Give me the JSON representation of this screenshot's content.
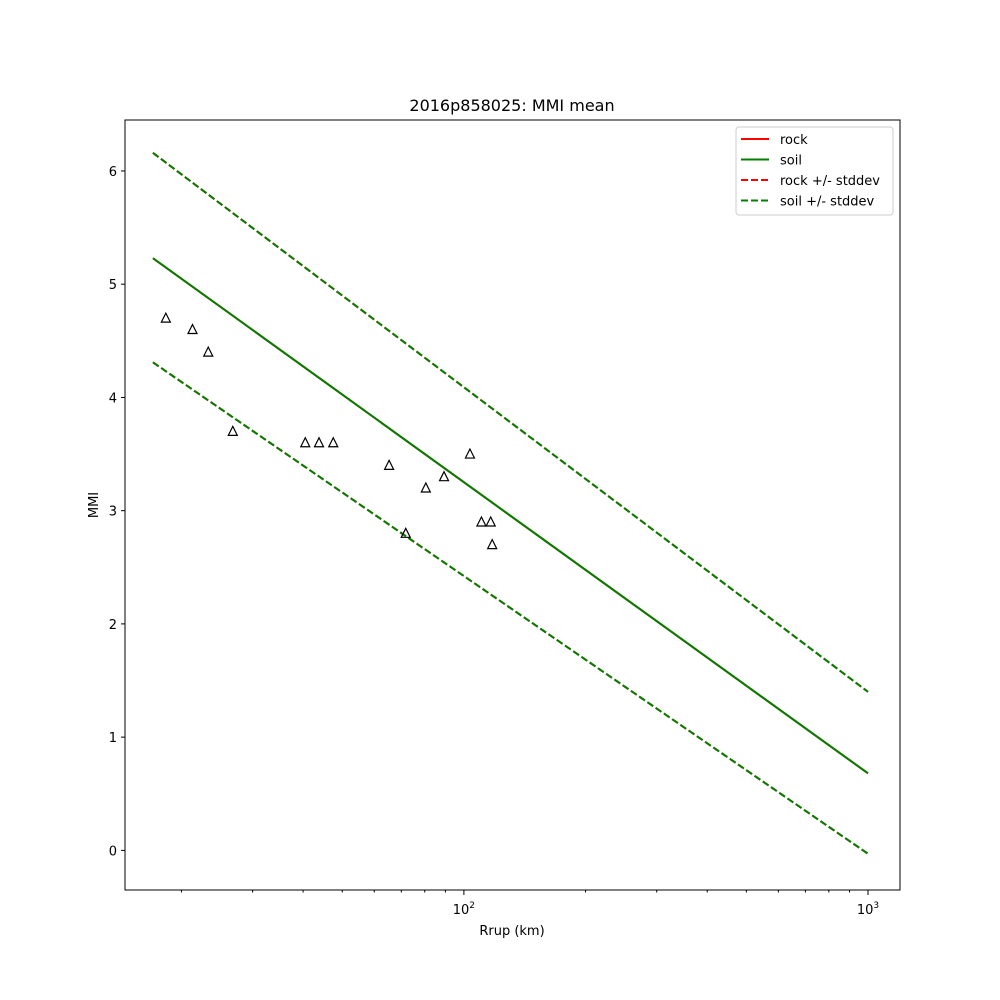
{
  "chart_data": {
    "type": "line",
    "title": "2016p858025: MMI mean",
    "xlabel": "Rrup (km)",
    "ylabel": "MMI",
    "xscale": "log",
    "xlim": [
      14.5,
      1200
    ],
    "ylim": [
      -0.35,
      6.45
    ],
    "x_ticks": [
      {
        "value": 100,
        "base": "10",
        "exp": "2"
      },
      {
        "value": 1000,
        "base": "10",
        "exp": "3"
      }
    ],
    "y_ticks": [
      0,
      1,
      2,
      3,
      4,
      5,
      6
    ],
    "grid": false,
    "legend_position": "top-right",
    "series": [
      {
        "name": "rock",
        "style": "solid",
        "color": "#ff0000",
        "x": [
          17,
          1000
        ],
        "y": [
          5.23,
          0.68
        ]
      },
      {
        "name": "soil",
        "style": "solid",
        "color": "#008000",
        "x": [
          17,
          1000
        ],
        "y": [
          5.23,
          0.68
        ]
      },
      {
        "name": "rock +/- stddev",
        "style": "dashed",
        "color": "#ff0000",
        "x": [
          17,
          1000
        ],
        "y": [
          6.16,
          1.4
        ]
      },
      {
        "name": "soil +/- stddev",
        "style": "dashed",
        "color": "#008000",
        "x": [
          17,
          1000
        ],
        "y": [
          6.16,
          1.4
        ]
      }
    ],
    "lower_band": {
      "x": [
        17,
        1000
      ],
      "y": [
        4.31,
        -0.03
      ]
    },
    "observations": {
      "marker": "triangle",
      "x": [
        18.3,
        21.3,
        23.3,
        26.8,
        40.5,
        43.8,
        47.5,
        65.3,
        71.8,
        80.5,
        89.3,
        103.5,
        110.5,
        116.5,
        117.5
      ],
      "y": [
        4.7,
        4.6,
        4.4,
        3.7,
        3.6,
        3.6,
        3.6,
        3.4,
        2.8,
        3.2,
        3.3,
        3.5,
        2.9,
        2.9,
        2.7
      ]
    }
  }
}
